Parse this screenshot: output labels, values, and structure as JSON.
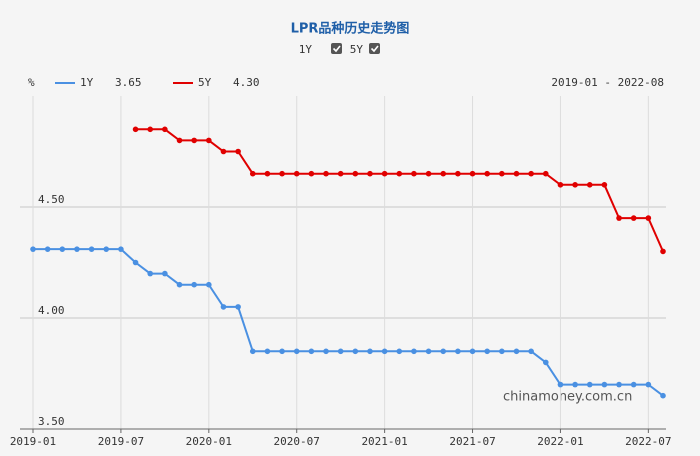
{
  "chart_data": {
    "type": "line",
    "title": "LPR品种历史走势图",
    "toggles": [
      "1Y",
      "5Y"
    ],
    "unit": "%",
    "date_range": "2019-01 - 2022-08",
    "watermark": "chinamoney.com.cn",
    "categories": [
      "2019-01",
      null,
      null,
      null,
      null,
      null,
      "2019-07",
      null,
      null,
      null,
      null,
      null,
      "2020-01",
      null,
      null,
      null,
      null,
      null,
      "2020-07",
      null,
      null,
      null,
      null,
      null,
      "2021-01",
      null,
      null,
      null,
      null,
      null,
      "2021-07",
      null,
      null,
      null,
      null,
      null,
      "2022-01",
      null,
      null,
      null,
      null,
      null,
      "2022-07",
      null
    ],
    "series": [
      {
        "name": "1Y",
        "latest_label": "3.65",
        "color": "#4a90e2",
        "values": [
          4.31,
          4.31,
          4.31,
          4.31,
          4.31,
          4.31,
          4.31,
          4.25,
          4.2,
          4.2,
          4.15,
          4.15,
          4.15,
          4.05,
          4.05,
          3.85,
          3.85,
          3.85,
          3.85,
          3.85,
          3.85,
          3.85,
          3.85,
          3.85,
          3.85,
          3.85,
          3.85,
          3.85,
          3.85,
          3.85,
          3.85,
          3.85,
          3.85,
          3.85,
          3.85,
          3.8,
          3.7,
          3.7,
          3.7,
          3.7,
          3.7,
          3.7,
          3.7,
          3.65
        ]
      },
      {
        "name": "5Y",
        "latest_label": "4.30",
        "color": "#e00000",
        "values": [
          null,
          null,
          null,
          null,
          null,
          null,
          null,
          4.85,
          4.85,
          4.85,
          4.8,
          4.8,
          4.8,
          4.75,
          4.75,
          4.65,
          4.65,
          4.65,
          4.65,
          4.65,
          4.65,
          4.65,
          4.65,
          4.65,
          4.65,
          4.65,
          4.65,
          4.65,
          4.65,
          4.65,
          4.65,
          4.65,
          4.65,
          4.65,
          4.65,
          4.65,
          4.6,
          4.6,
          4.6,
          4.6,
          4.45,
          4.45,
          4.45,
          4.3
        ]
      }
    ],
    "ylim": [
      3.5,
      5.0
    ],
    "yticks": [
      {
        "value": 3.5,
        "label": "3.50"
      },
      {
        "value": 4.0,
        "label": "4.00"
      },
      {
        "value": 4.5,
        "label": "4.50"
      }
    ],
    "grid": true
  }
}
